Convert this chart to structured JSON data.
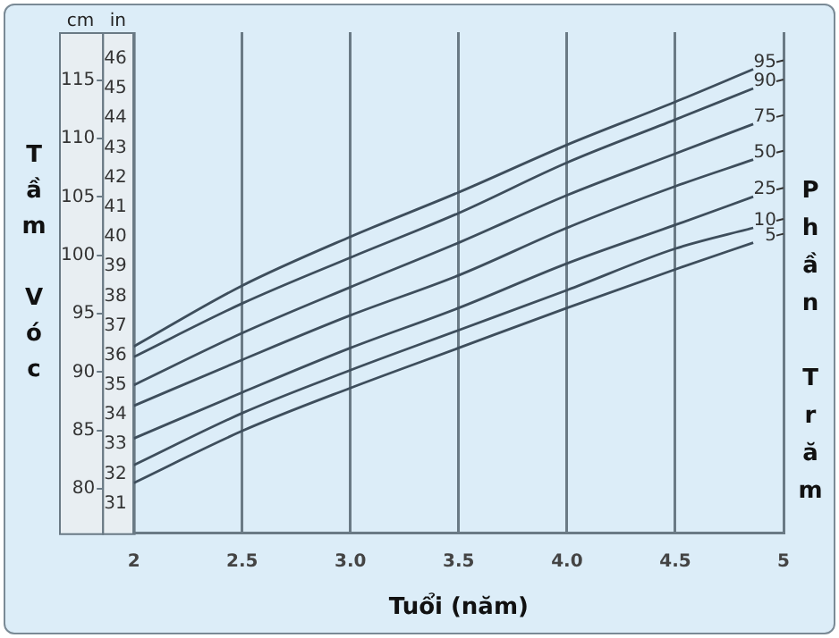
{
  "chart_data": {
    "type": "line",
    "xlabel": "Tuổi (năm)",
    "ylabel": "in",
    "y2label": "cm",
    "annotations": [
      "Tầm Vóc",
      "Phần Trăm"
    ],
    "x": [
      2,
      2.5,
      3,
      3.5,
      4,
      4.5,
      4.86
    ],
    "xlim": [
      2,
      5
    ],
    "xticks": [
      2,
      2.5,
      {
        "value": 3,
        "label": "3.0"
      },
      3.5,
      {
        "value": 4,
        "label": "4.0"
      },
      4.5,
      5
    ],
    "ylim": [
      30,
      46.9
    ],
    "yticks": [
      31,
      32,
      33,
      34,
      35,
      36,
      37,
      38,
      39,
      40,
      41,
      42,
      43,
      44,
      45,
      46
    ],
    "y2lim": [
      76.2,
      119.1
    ],
    "y2ticks": [
      80,
      85,
      90,
      95,
      100,
      105,
      110,
      115
    ],
    "grid": "x",
    "legend": false,
    "marker": "none",
    "line_style": "solid",
    "series": [
      {
        "name": "95",
        "color": "#3e4e5c",
        "values": [
          36.3,
          38.35,
          40.0,
          41.5,
          43.1,
          44.55,
          45.65
        ]
      },
      {
        "name": "90",
        "color": "#3e4e5c",
        "values": [
          35.95,
          37.75,
          39.3,
          40.8,
          42.5,
          43.95,
          45.0
        ]
      },
      {
        "name": "75",
        "color": "#3e4e5c",
        "values": [
          35.0,
          36.75,
          38.3,
          39.8,
          41.4,
          42.8,
          43.8
        ]
      },
      {
        "name": "50",
        "color": "#3e4e5c",
        "values": [
          34.3,
          35.85,
          37.35,
          38.7,
          40.3,
          41.7,
          42.6
        ]
      },
      {
        "name": "25",
        "color": "#3e4e5c",
        "values": [
          33.2,
          34.75,
          36.25,
          37.6,
          39.1,
          40.4,
          41.35
        ]
      },
      {
        "name": "10",
        "color": "#3e4e5c",
        "values": [
          32.3,
          34.05,
          35.5,
          36.85,
          38.2,
          39.6,
          40.3
        ]
      },
      {
        "name": "5",
        "color": "#3e4e5c",
        "values": [
          31.7,
          33.45,
          34.9,
          36.25,
          37.6,
          38.9,
          39.8
        ]
      }
    ]
  }
}
